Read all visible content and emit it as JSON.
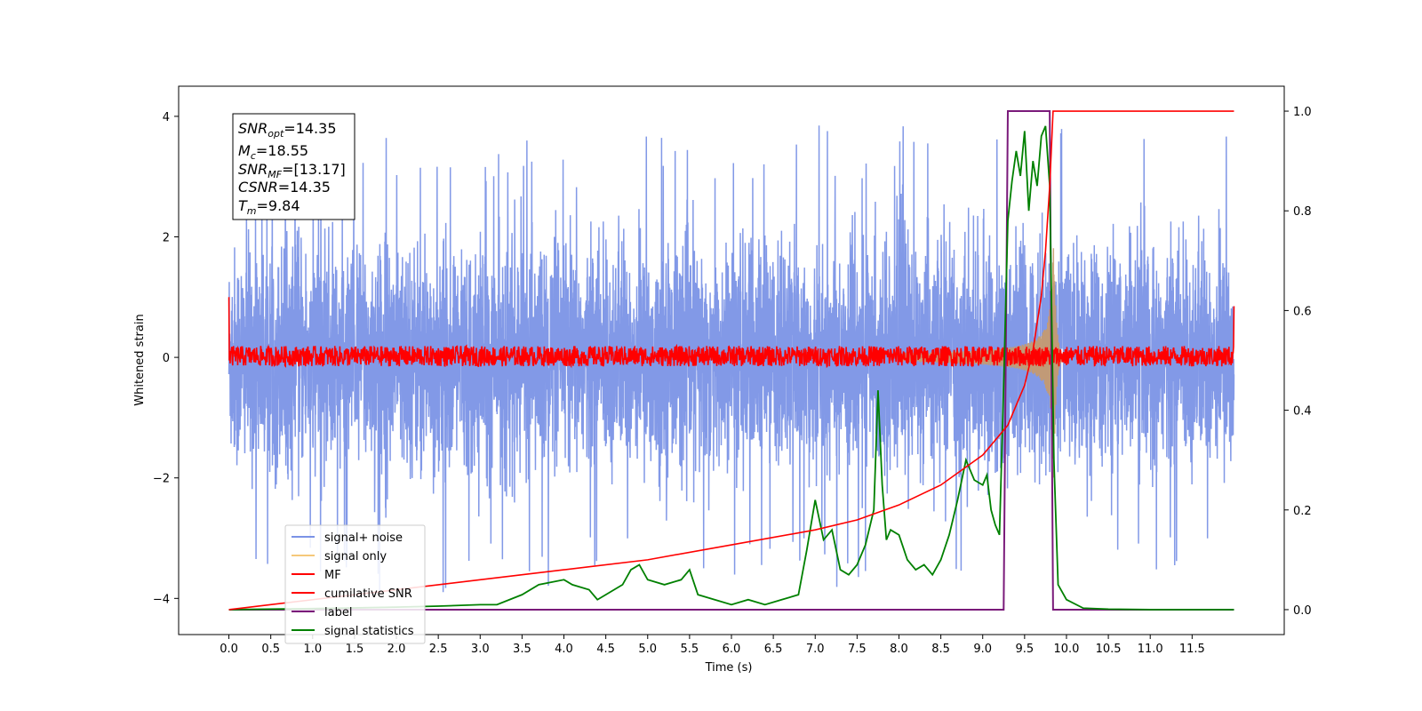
{
  "chart_data": {
    "type": "line",
    "xlabel": "Time (s)",
    "ylabel": "Whitened strain",
    "xlim": [
      -0.6,
      12.6
    ],
    "ylim": [
      -4.6,
      4.5
    ],
    "y2lim": [
      -0.05,
      1.05
    ],
    "x_ticks": [
      "0.0",
      "0.5",
      "1.0",
      "1.5",
      "2.0",
      "2.5",
      "3.0",
      "3.5",
      "4.0",
      "4.5",
      "5.0",
      "5.5",
      "6.0",
      "6.5",
      "7.0",
      "7.5",
      "8.0",
      "8.5",
      "9.0",
      "9.5",
      "10.0",
      "10.5",
      "11.0",
      "11.5"
    ],
    "y_ticks": [
      "4",
      "2",
      "0",
      "−2",
      "−4"
    ],
    "y2_ticks": [
      "1.0",
      "0.8",
      "0.6",
      "0.4",
      "0.2",
      "0.0"
    ],
    "annotation": {
      "snr_opt": {
        "sym": "SNR",
        "sub": "opt",
        "val": "=14.35"
      },
      "mc": {
        "sym": "M",
        "sub": "c",
        "val": "=18.55"
      },
      "snr_mf": {
        "sym": "SNR",
        "sub": "MF",
        "val": "=[13.17]"
      },
      "csnr": {
        "sym": "CSNR",
        "sub": "",
        "val": "=14.35"
      },
      "tm": {
        "sym": "T",
        "sub": "m",
        "val": "=9.84"
      }
    },
    "legend": {
      "placement": "lower-left",
      "entries": [
        {
          "label": "signal+ noise",
          "color": "#7b93e6"
        },
        {
          "label": "signal only",
          "color": "#f5c87a"
        },
        {
          "label": "MF",
          "color": "#ff0000"
        },
        {
          "label": "cumilative SNR",
          "color": "#ff0000"
        },
        {
          "label": "label",
          "color": "#7a1a7a"
        },
        {
          "label": "signal statistics",
          "color": "#008000"
        }
      ]
    },
    "series": [
      {
        "name": "signal+ noise",
        "axis": "left",
        "note": "noise, amplitude about ±2.5 with spikes to about ±4, t 0–12"
      },
      {
        "name": "signal only",
        "axis": "left",
        "note": "chirp, amplitude grows from about 0.1 near t=8.3 to about 2.8 at t=9.84"
      },
      {
        "name": "MF",
        "axis": "left",
        "note": "matched filter, around 0 with amplitude about 0.2, edges about 1.0 and 0.8"
      },
      {
        "name": "cumilative SNR",
        "axis": "right",
        "x": [
          0.0,
          0.5,
          1,
          2,
          3,
          4,
          5,
          6,
          7,
          7.5,
          8,
          8.5,
          9,
          9.3,
          9.5,
          9.6,
          9.7,
          9.75,
          9.8,
          9.84,
          9.85,
          9.9,
          11.0,
          12.0
        ],
        "y": [
          0.0,
          0.01,
          0.02,
          0.04,
          0.06,
          0.08,
          0.1,
          0.13,
          0.16,
          0.18,
          0.21,
          0.25,
          0.31,
          0.37,
          0.45,
          0.52,
          0.63,
          0.72,
          0.85,
          1.0,
          1.0,
          1.0,
          1.0,
          1.0
        ]
      },
      {
        "name": "label",
        "axis": "right",
        "x": [
          0,
          9.25,
          9.3,
          9.8,
          9.84,
          10.0,
          12.0
        ],
        "y": [
          0,
          0,
          1,
          1,
          0,
          0,
          0
        ]
      },
      {
        "name": "signal statistics",
        "axis": "right",
        "x": [
          0,
          1,
          2,
          2.5,
          3,
          3.2,
          3.5,
          3.7,
          4,
          4.1,
          4.3,
          4.4,
          4.5,
          4.7,
          4.8,
          4.9,
          5.0,
          5.2,
          5.4,
          5.5,
          5.6,
          5.8,
          6,
          6.2,
          6.4,
          6.6,
          6.8,
          6.9,
          7.0,
          7.1,
          7.2,
          7.3,
          7.4,
          7.5,
          7.6,
          7.7,
          7.75,
          7.8,
          7.85,
          7.9,
          8.0,
          8.1,
          8.2,
          8.3,
          8.4,
          8.5,
          8.6,
          8.7,
          8.8,
          8.9,
          9.0,
          9.05,
          9.1,
          9.15,
          9.2,
          9.25,
          9.3,
          9.35,
          9.4,
          9.45,
          9.5,
          9.55,
          9.6,
          9.65,
          9.7,
          9.75,
          9.8,
          9.85,
          9.9,
          10.0,
          10.2,
          10.5,
          11,
          12
        ],
        "y": [
          0,
          0.002,
          0.005,
          0.007,
          0.01,
          0.01,
          0.03,
          0.05,
          0.06,
          0.05,
          0.04,
          0.02,
          0.03,
          0.05,
          0.08,
          0.09,
          0.06,
          0.05,
          0.06,
          0.08,
          0.03,
          0.02,
          0.01,
          0.02,
          0.01,
          0.02,
          0.03,
          0.12,
          0.22,
          0.14,
          0.16,
          0.08,
          0.07,
          0.09,
          0.13,
          0.2,
          0.44,
          0.25,
          0.14,
          0.16,
          0.15,
          0.1,
          0.08,
          0.09,
          0.07,
          0.1,
          0.15,
          0.22,
          0.3,
          0.26,
          0.25,
          0.27,
          0.2,
          0.17,
          0.15,
          0.45,
          0.78,
          0.86,
          0.92,
          0.87,
          0.96,
          0.8,
          0.9,
          0.85,
          0.95,
          0.97,
          0.85,
          0.3,
          0.05,
          0.02,
          0.003,
          0.001,
          0,
          0
        ]
      }
    ]
  }
}
